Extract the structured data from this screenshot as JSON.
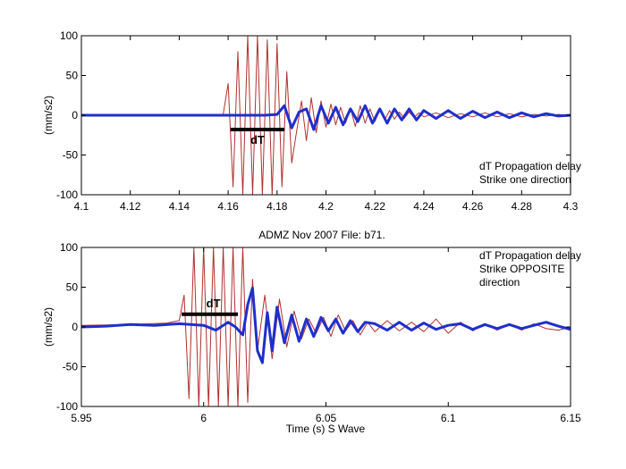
{
  "chart_data": [
    {
      "type": "line",
      "title": "",
      "xlabel": "",
      "ylabel": "(mm/s2)",
      "xlim": [
        4.1,
        4.3
      ],
      "ylim": [
        -100,
        100
      ],
      "xticks": [
        "4.1",
        "4.12",
        "4.14",
        "4.16",
        "4.18",
        "4.2",
        "4.22",
        "4.24",
        "4.26",
        "4.28",
        "4.3"
      ],
      "yticks": [
        "100",
        "50",
        "0",
        "-50",
        "-100"
      ],
      "grid": false,
      "annotation": [
        "dT Propagation delay",
        "Strike one direction"
      ],
      "delay_marker": {
        "label": "dT",
        "x_start": 4.161,
        "x_end": 4.183,
        "y": -18
      },
      "series": [
        {
          "color": "#b03030",
          "x": [
            4.1,
            4.12,
            4.14,
            4.158,
            4.16,
            4.162,
            4.164,
            4.166,
            4.168,
            4.17,
            4.172,
            4.174,
            4.176,
            4.178,
            4.18,
            4.182,
            4.184,
            4.186,
            4.188,
            4.19,
            4.192,
            4.194,
            4.196,
            4.198,
            4.2,
            4.202,
            4.204,
            4.206,
            4.208,
            4.21,
            4.212,
            4.214,
            4.216,
            4.218,
            4.22,
            4.222,
            4.224,
            4.226,
            4.228,
            4.23,
            4.232,
            4.234,
            4.236,
            4.238,
            4.24,
            4.245,
            4.25,
            4.255,
            4.26,
            4.265,
            4.27,
            4.275,
            4.28,
            4.285,
            4.29,
            4.295,
            4.3
          ],
          "values": [
            0,
            0,
            0,
            1,
            40,
            -90,
            80,
            -100,
            100,
            -100,
            100,
            -100,
            95,
            -100,
            90,
            -90,
            55,
            -60,
            -20,
            18,
            -32,
            22,
            -22,
            18,
            -15,
            14,
            -12,
            10,
            -10,
            9,
            -14,
            12,
            -10,
            8,
            -8,
            7,
            -6,
            6,
            -5,
            4,
            -4,
            4,
            -3,
            3,
            -2,
            3,
            -3,
            2,
            -2,
            3,
            -2,
            2,
            -2,
            1,
            -1,
            1,
            0
          ]
        },
        {
          "color": "#1f2fcc",
          "x": [
            4.1,
            4.12,
            4.14,
            4.16,
            4.175,
            4.18,
            4.183,
            4.186,
            4.189,
            4.192,
            4.195,
            4.198,
            4.201,
            4.204,
            4.207,
            4.21,
            4.213,
            4.216,
            4.219,
            4.222,
            4.225,
            4.228,
            4.231,
            4.234,
            4.237,
            4.24,
            4.245,
            4.25,
            4.255,
            4.26,
            4.265,
            4.27,
            4.275,
            4.28,
            4.285,
            4.29,
            4.295,
            4.3
          ],
          "values": [
            0,
            0,
            0,
            0,
            0,
            1,
            12,
            -16,
            4,
            8,
            -18,
            12,
            -10,
            10,
            -12,
            8,
            -8,
            12,
            -10,
            8,
            -10,
            8,
            -6,
            8,
            -6,
            6,
            -4,
            6,
            -4,
            5,
            -3,
            4,
            -3,
            3,
            -2,
            2,
            -1,
            0
          ]
        }
      ]
    },
    {
      "type": "line",
      "title": "ADMZ Nov 2007 File: b71.",
      "xlabel": "Time (s) S Wave",
      "ylabel": "(mm/s2)",
      "xlim": [
        5.95,
        6.15
      ],
      "ylim": [
        -100,
        100
      ],
      "xticks": [
        "5.95",
        "6",
        "6.05",
        "6.1",
        "6.15"
      ],
      "yticks": [
        "100",
        "50",
        "0",
        "-50",
        "-100"
      ],
      "grid": false,
      "annotation": [
        "dT Propagation delay",
        "Strike OPPOSITE",
        "direction"
      ],
      "delay_marker": {
        "label": "dT",
        "x_start": 5.991,
        "x_end": 6.014,
        "y": 16
      },
      "series": [
        {
          "color": "#b03030",
          "x": [
            5.95,
            5.97,
            5.985,
            5.99,
            5.992,
            5.994,
            5.996,
            5.998,
            6.0,
            6.002,
            6.004,
            6.006,
            6.008,
            6.01,
            6.012,
            6.014,
            6.016,
            6.018,
            6.02,
            6.022,
            6.025,
            6.028,
            6.031,
            6.034,
            6.037,
            6.04,
            6.043,
            6.046,
            6.049,
            6.052,
            6.055,
            6.058,
            6.061,
            6.064,
            6.067,
            6.07,
            6.075,
            6.08,
            6.085,
            6.09,
            6.095,
            6.1,
            6.105,
            6.11,
            6.115,
            6.12,
            6.125,
            6.13,
            6.135,
            6.14,
            6.145,
            6.15
          ],
          "values": [
            2,
            3,
            5,
            8,
            40,
            -90,
            100,
            -100,
            100,
            -100,
            100,
            -100,
            100,
            -100,
            100,
            -100,
            100,
            -95,
            60,
            -30,
            40,
            -40,
            35,
            -25,
            20,
            -15,
            10,
            -8,
            12,
            -12,
            15,
            -5,
            8,
            -10,
            6,
            -6,
            8,
            -5,
            6,
            -6,
            10,
            -8,
            6,
            -5,
            4,
            -4,
            3,
            -4,
            4,
            -2,
            -4,
            0
          ]
        },
        {
          "color": "#1f2fcc",
          "x": [
            5.95,
            5.96,
            5.97,
            5.98,
            5.99,
            6.0,
            6.005,
            6.01,
            6.013,
            6.016,
            6.018,
            6.02,
            6.022,
            6.024,
            6.026,
            6.028,
            6.03,
            6.033,
            6.036,
            6.039,
            6.042,
            6.045,
            6.048,
            6.051,
            6.054,
            6.057,
            6.06,
            6.063,
            6.066,
            6.07,
            6.075,
            6.08,
            6.085,
            6.09,
            6.095,
            6.1,
            6.105,
            6.11,
            6.115,
            6.12,
            6.125,
            6.13,
            6.135,
            6.14,
            6.145,
            6.15
          ],
          "values": [
            0,
            1,
            3,
            2,
            4,
            2,
            -4,
            6,
            0,
            -10,
            28,
            49,
            -30,
            -45,
            18,
            -30,
            25,
            -20,
            15,
            -18,
            10,
            -12,
            12,
            -5,
            10,
            -8,
            8,
            -6,
            6,
            4,
            -4,
            6,
            -4,
            5,
            -3,
            2,
            4,
            -3,
            3,
            -2,
            3,
            -2,
            2,
            6,
            1,
            -3
          ]
        }
      ]
    }
  ]
}
